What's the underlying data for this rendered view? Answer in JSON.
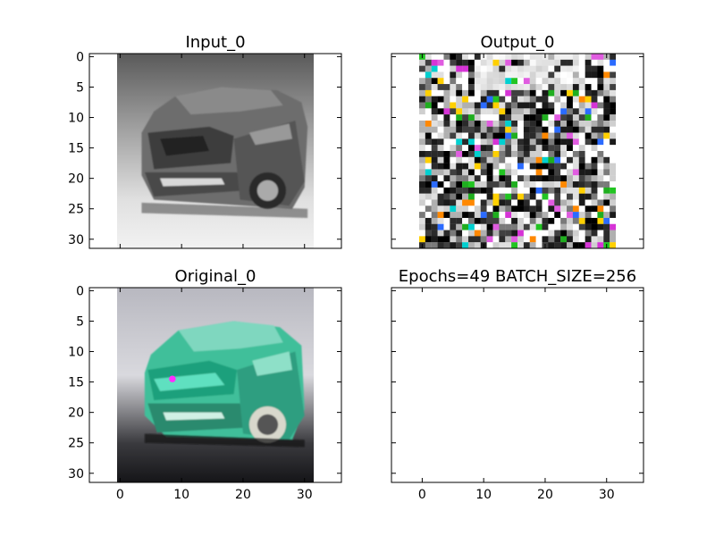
{
  "chart_data": [
    {
      "type": "heatmap",
      "title": "Input_0",
      "xlim": [
        -5,
        36
      ],
      "ylim": [
        31.5,
        -0.5
      ],
      "xticks": [
        0,
        10,
        20,
        30
      ],
      "yticks": [
        0,
        5,
        10,
        15,
        20,
        25,
        30
      ],
      "image_extent": [
        -0.5,
        31.5,
        31.5,
        -0.5
      ],
      "image_content": "grayscale car",
      "show_x_tick_labels": false,
      "show_y_tick_labels": true
    },
    {
      "type": "heatmap",
      "title": "Output_0",
      "xlim": [
        -5,
        36
      ],
      "ylim": [
        31.5,
        -0.5
      ],
      "xticks": [
        0,
        10,
        20,
        30
      ],
      "yticks": [
        0,
        5,
        10,
        15,
        20,
        25,
        30
      ],
      "image_extent": [
        -0.5,
        31.5,
        31.5,
        -0.5
      ],
      "image_content": "noisy color pixels",
      "show_x_tick_labels": false,
      "show_y_tick_labels": false
    },
    {
      "type": "heatmap",
      "title": "Original_0",
      "xlim": [
        -5,
        36
      ],
      "ylim": [
        31.5,
        -0.5
      ],
      "xticks": [
        0,
        10,
        20,
        30
      ],
      "yticks": [
        0,
        5,
        10,
        15,
        20,
        25,
        30
      ],
      "image_extent": [
        -0.5,
        31.5,
        31.5,
        -0.5
      ],
      "image_content": "teal car",
      "show_x_tick_labels": true,
      "show_y_tick_labels": true
    },
    {
      "type": "heatmap",
      "title": "Epochs=49 BATCH_SIZE=256",
      "xlim": [
        -5,
        36
      ],
      "ylim": [
        31.5,
        -0.5
      ],
      "xticks": [
        0,
        10,
        20,
        30
      ],
      "yticks": [
        0,
        5,
        10,
        15,
        20,
        25,
        30
      ],
      "image_extent": null,
      "image_content": "empty",
      "show_x_tick_labels": true,
      "show_y_tick_labels": false
    }
  ]
}
